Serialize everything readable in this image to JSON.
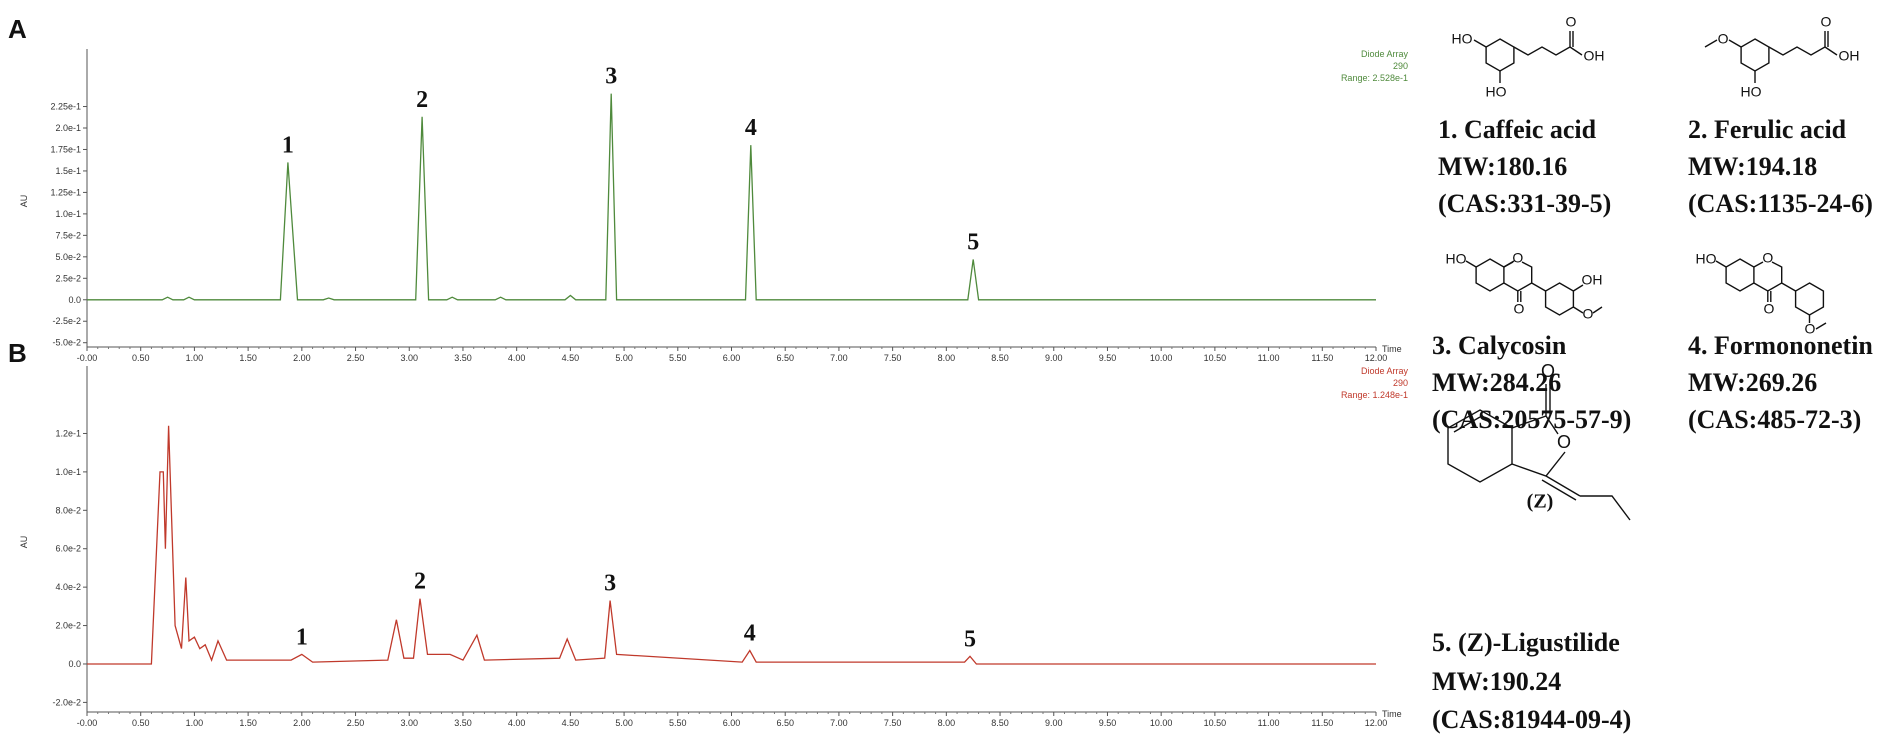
{
  "chart_data": [
    {
      "type": "line",
      "label": "A",
      "ylabel": "AU",
      "xlabel": "Time",
      "color": "#4f8a3c",
      "notes": [
        "Diode Array",
        "290",
        "Range: 2.528e-1"
      ],
      "xlim": [
        0,
        12
      ],
      "ylim": [
        -0.055,
        0.285
      ],
      "xticks": [
        {
          "value": 0,
          "label": "-0.00"
        },
        {
          "value": 0.5,
          "label": "0.50"
        },
        {
          "value": 1,
          "label": "1.00"
        },
        {
          "value": 1.5,
          "label": "1.50"
        },
        {
          "value": 2,
          "label": "2.00"
        },
        {
          "value": 2.5,
          "label": "2.50"
        },
        {
          "value": 3,
          "label": "3.00"
        },
        {
          "value": 3.5,
          "label": "3.50"
        },
        {
          "value": 4,
          "label": "4.00"
        },
        {
          "value": 4.5,
          "label": "4.50"
        },
        {
          "value": 5,
          "label": "5.00"
        },
        {
          "value": 5.5,
          "label": "5.50"
        },
        {
          "value": 6,
          "label": "6.00"
        },
        {
          "value": 6.5,
          "label": "6.50"
        },
        {
          "value": 7,
          "label": "7.00"
        },
        {
          "value": 7.5,
          "label": "7.50"
        },
        {
          "value": 8,
          "label": "8.00"
        },
        {
          "value": 8.5,
          "label": "8.50"
        },
        {
          "value": 9,
          "label": "9.00"
        },
        {
          "value": 9.5,
          "label": "9.50"
        },
        {
          "value": 10,
          "label": "10.00"
        },
        {
          "value": 10.5,
          "label": "10.50"
        },
        {
          "value": 11,
          "label": "11.00"
        },
        {
          "value": 11.5,
          "label": "11.50"
        },
        {
          "value": 12,
          "label": "12.00"
        }
      ],
      "yticks": [
        {
          "value": -0.05,
          "label": "-5.0e-2"
        },
        {
          "value": -0.025,
          "label": "-2.5e-2"
        },
        {
          "value": 0,
          "label": "0.0"
        },
        {
          "value": 0.025,
          "label": "2.5e-2"
        },
        {
          "value": 0.05,
          "label": "5.0e-2"
        },
        {
          "value": 0.075,
          "label": "7.5e-2"
        },
        {
          "value": 0.1,
          "label": "1.0e-1"
        },
        {
          "value": 0.125,
          "label": "1.25e-1"
        },
        {
          "value": 0.15,
          "label": "1.5e-1"
        },
        {
          "value": 0.175,
          "label": "1.75e-1"
        },
        {
          "value": 0.2,
          "label": "2.0e-1"
        },
        {
          "value": 0.225,
          "label": "2.25e-1"
        }
      ],
      "x": [
        0,
        0.7,
        0.75,
        0.8,
        0.9,
        0.95,
        1.0,
        1.8,
        1.87,
        1.96,
        2.2,
        2.25,
        2.3,
        3.06,
        3.12,
        3.18,
        3.35,
        3.4,
        3.45,
        3.8,
        3.85,
        3.9,
        4.45,
        4.5,
        4.55,
        4.83,
        4.88,
        4.93,
        6.13,
        6.18,
        6.23,
        8.2,
        8.25,
        8.3,
        12
      ],
      "values": [
        0,
        0,
        0.003,
        0,
        0,
        0.003,
        0,
        0,
        0.16,
        0,
        0,
        0.002,
        0,
        0,
        0.213,
        0,
        0,
        0.003,
        0,
        0,
        0.003,
        0,
        0,
        0.005,
        0,
        0,
        0.24,
        0,
        0,
        0.18,
        0,
        0,
        0.047,
        0,
        0
      ],
      "annotations": [
        {
          "text": "1",
          "x": 1.87,
          "y": 0.16
        },
        {
          "text": "2",
          "x": 3.12,
          "y": 0.213
        },
        {
          "text": "3",
          "x": 4.88,
          "y": 0.24
        },
        {
          "text": "4",
          "x": 6.18,
          "y": 0.18
        },
        {
          "text": "5",
          "x": 8.25,
          "y": 0.047
        }
      ]
    },
    {
      "type": "line",
      "label": "B",
      "ylabel": "AU",
      "xlabel": "Time",
      "color": "#c0392b",
      "notes": [
        "Diode Array",
        "290",
        "Range: 1.248e-1"
      ],
      "xlim": [
        0,
        12
      ],
      "ylim": [
        -0.025,
        0.152
      ],
      "xticks": [
        {
          "value": 0,
          "label": "-0.00"
        },
        {
          "value": 0.5,
          "label": "0.50"
        },
        {
          "value": 1,
          "label": "1.00"
        },
        {
          "value": 1.5,
          "label": "1.50"
        },
        {
          "value": 2,
          "label": "2.00"
        },
        {
          "value": 2.5,
          "label": "2.50"
        },
        {
          "value": 3,
          "label": "3.00"
        },
        {
          "value": 3.5,
          "label": "3.50"
        },
        {
          "value": 4,
          "label": "4.00"
        },
        {
          "value": 4.5,
          "label": "4.50"
        },
        {
          "value": 5,
          "label": "5.00"
        },
        {
          "value": 5.5,
          "label": "5.50"
        },
        {
          "value": 6,
          "label": "6.00"
        },
        {
          "value": 6.5,
          "label": "6.50"
        },
        {
          "value": 7,
          "label": "7.00"
        },
        {
          "value": 7.5,
          "label": "7.50"
        },
        {
          "value": 8,
          "label": "8.00"
        },
        {
          "value": 8.5,
          "label": "8.50"
        },
        {
          "value": 9,
          "label": "9.00"
        },
        {
          "value": 9.5,
          "label": "9.50"
        },
        {
          "value": 10,
          "label": "10.00"
        },
        {
          "value": 10.5,
          "label": "10.50"
        },
        {
          "value": 11,
          "label": "11.00"
        },
        {
          "value": 11.5,
          "label": "11.50"
        },
        {
          "value": 12,
          "label": "12.00"
        }
      ],
      "yticks": [
        {
          "value": -0.02,
          "label": "-2.0e-2"
        },
        {
          "value": 0,
          "label": "0.0"
        },
        {
          "value": 0.02,
          "label": "2.0e-2"
        },
        {
          "value": 0.04,
          "label": "4.0e-2"
        },
        {
          "value": 0.06,
          "label": "6.0e-2"
        },
        {
          "value": 0.08,
          "label": "8.0e-2"
        },
        {
          "value": 0.1,
          "label": "1.0e-1"
        },
        {
          "value": 0.12,
          "label": "1.2e-1"
        }
      ],
      "x": [
        0,
        0.6,
        0.68,
        0.71,
        0.73,
        0.76,
        0.82,
        0.88,
        0.92,
        0.95,
        1.0,
        1.05,
        1.1,
        1.16,
        1.22,
        1.3,
        1.9,
        2.0,
        2.1,
        2.8,
        2.88,
        2.95,
        3.04,
        3.1,
        3.17,
        3.38,
        3.5,
        3.63,
        3.7,
        4.4,
        4.47,
        4.55,
        4.82,
        4.87,
        4.93,
        6.1,
        6.17,
        6.23,
        8.17,
        8.22,
        8.28,
        12
      ],
      "values": [
        0,
        0,
        0.1,
        0.1,
        0.06,
        0.124,
        0.02,
        0.008,
        0.045,
        0.012,
        0.014,
        0.008,
        0.01,
        0.002,
        0.012,
        0.002,
        0.002,
        0.005,
        0.001,
        0.002,
        0.023,
        0.003,
        0.003,
        0.034,
        0.005,
        0.005,
        0.002,
        0.015,
        0.002,
        0.003,
        0.013,
        0.002,
        0.003,
        0.033,
        0.005,
        0.001,
        0.007,
        0.001,
        0.001,
        0.004,
        0,
        0
      ],
      "annotations": [
        {
          "text": "1",
          "x": 2.0,
          "y": 0.005
        },
        {
          "text": "2",
          "x": 3.1,
          "y": 0.034
        },
        {
          "text": "3",
          "x": 4.87,
          "y": 0.033
        },
        {
          "text": "4",
          "x": 6.17,
          "y": 0.007
        },
        {
          "text": "5",
          "x": 8.22,
          "y": 0.004
        }
      ]
    }
  ],
  "compounds": [
    {
      "name": "1. Caffeic acid",
      "mw": "MW:180.16",
      "cas": "(CAS:331-39-5)",
      "atoms": [
        "HO",
        "HO",
        "O",
        "OH"
      ]
    },
    {
      "name": "2. Ferulic acid",
      "mw": "MW:194.18",
      "cas": "(CAS:1135-24-6)",
      "atoms": [
        "O",
        "HO",
        "O",
        "OH"
      ]
    },
    {
      "name": "3. Calycosin",
      "mw": "MW:284.26",
      "cas": "(CAS:20575-57-9)",
      "atoms": [
        "HO",
        "O",
        "O",
        "OH",
        "O"
      ]
    },
    {
      "name": "4. Formononetin",
      "mw": "MW:269.26",
      "cas": "(CAS:485-72-3)",
      "atoms": [
        "HO",
        "O",
        "O",
        "O"
      ]
    },
    {
      "name": "5. (Z)-Ligustilide",
      "mw": "MW:190.24",
      "cas": "(CAS:81944-09-4)",
      "atoms": [
        "O",
        "O",
        "(Z)"
      ]
    }
  ]
}
